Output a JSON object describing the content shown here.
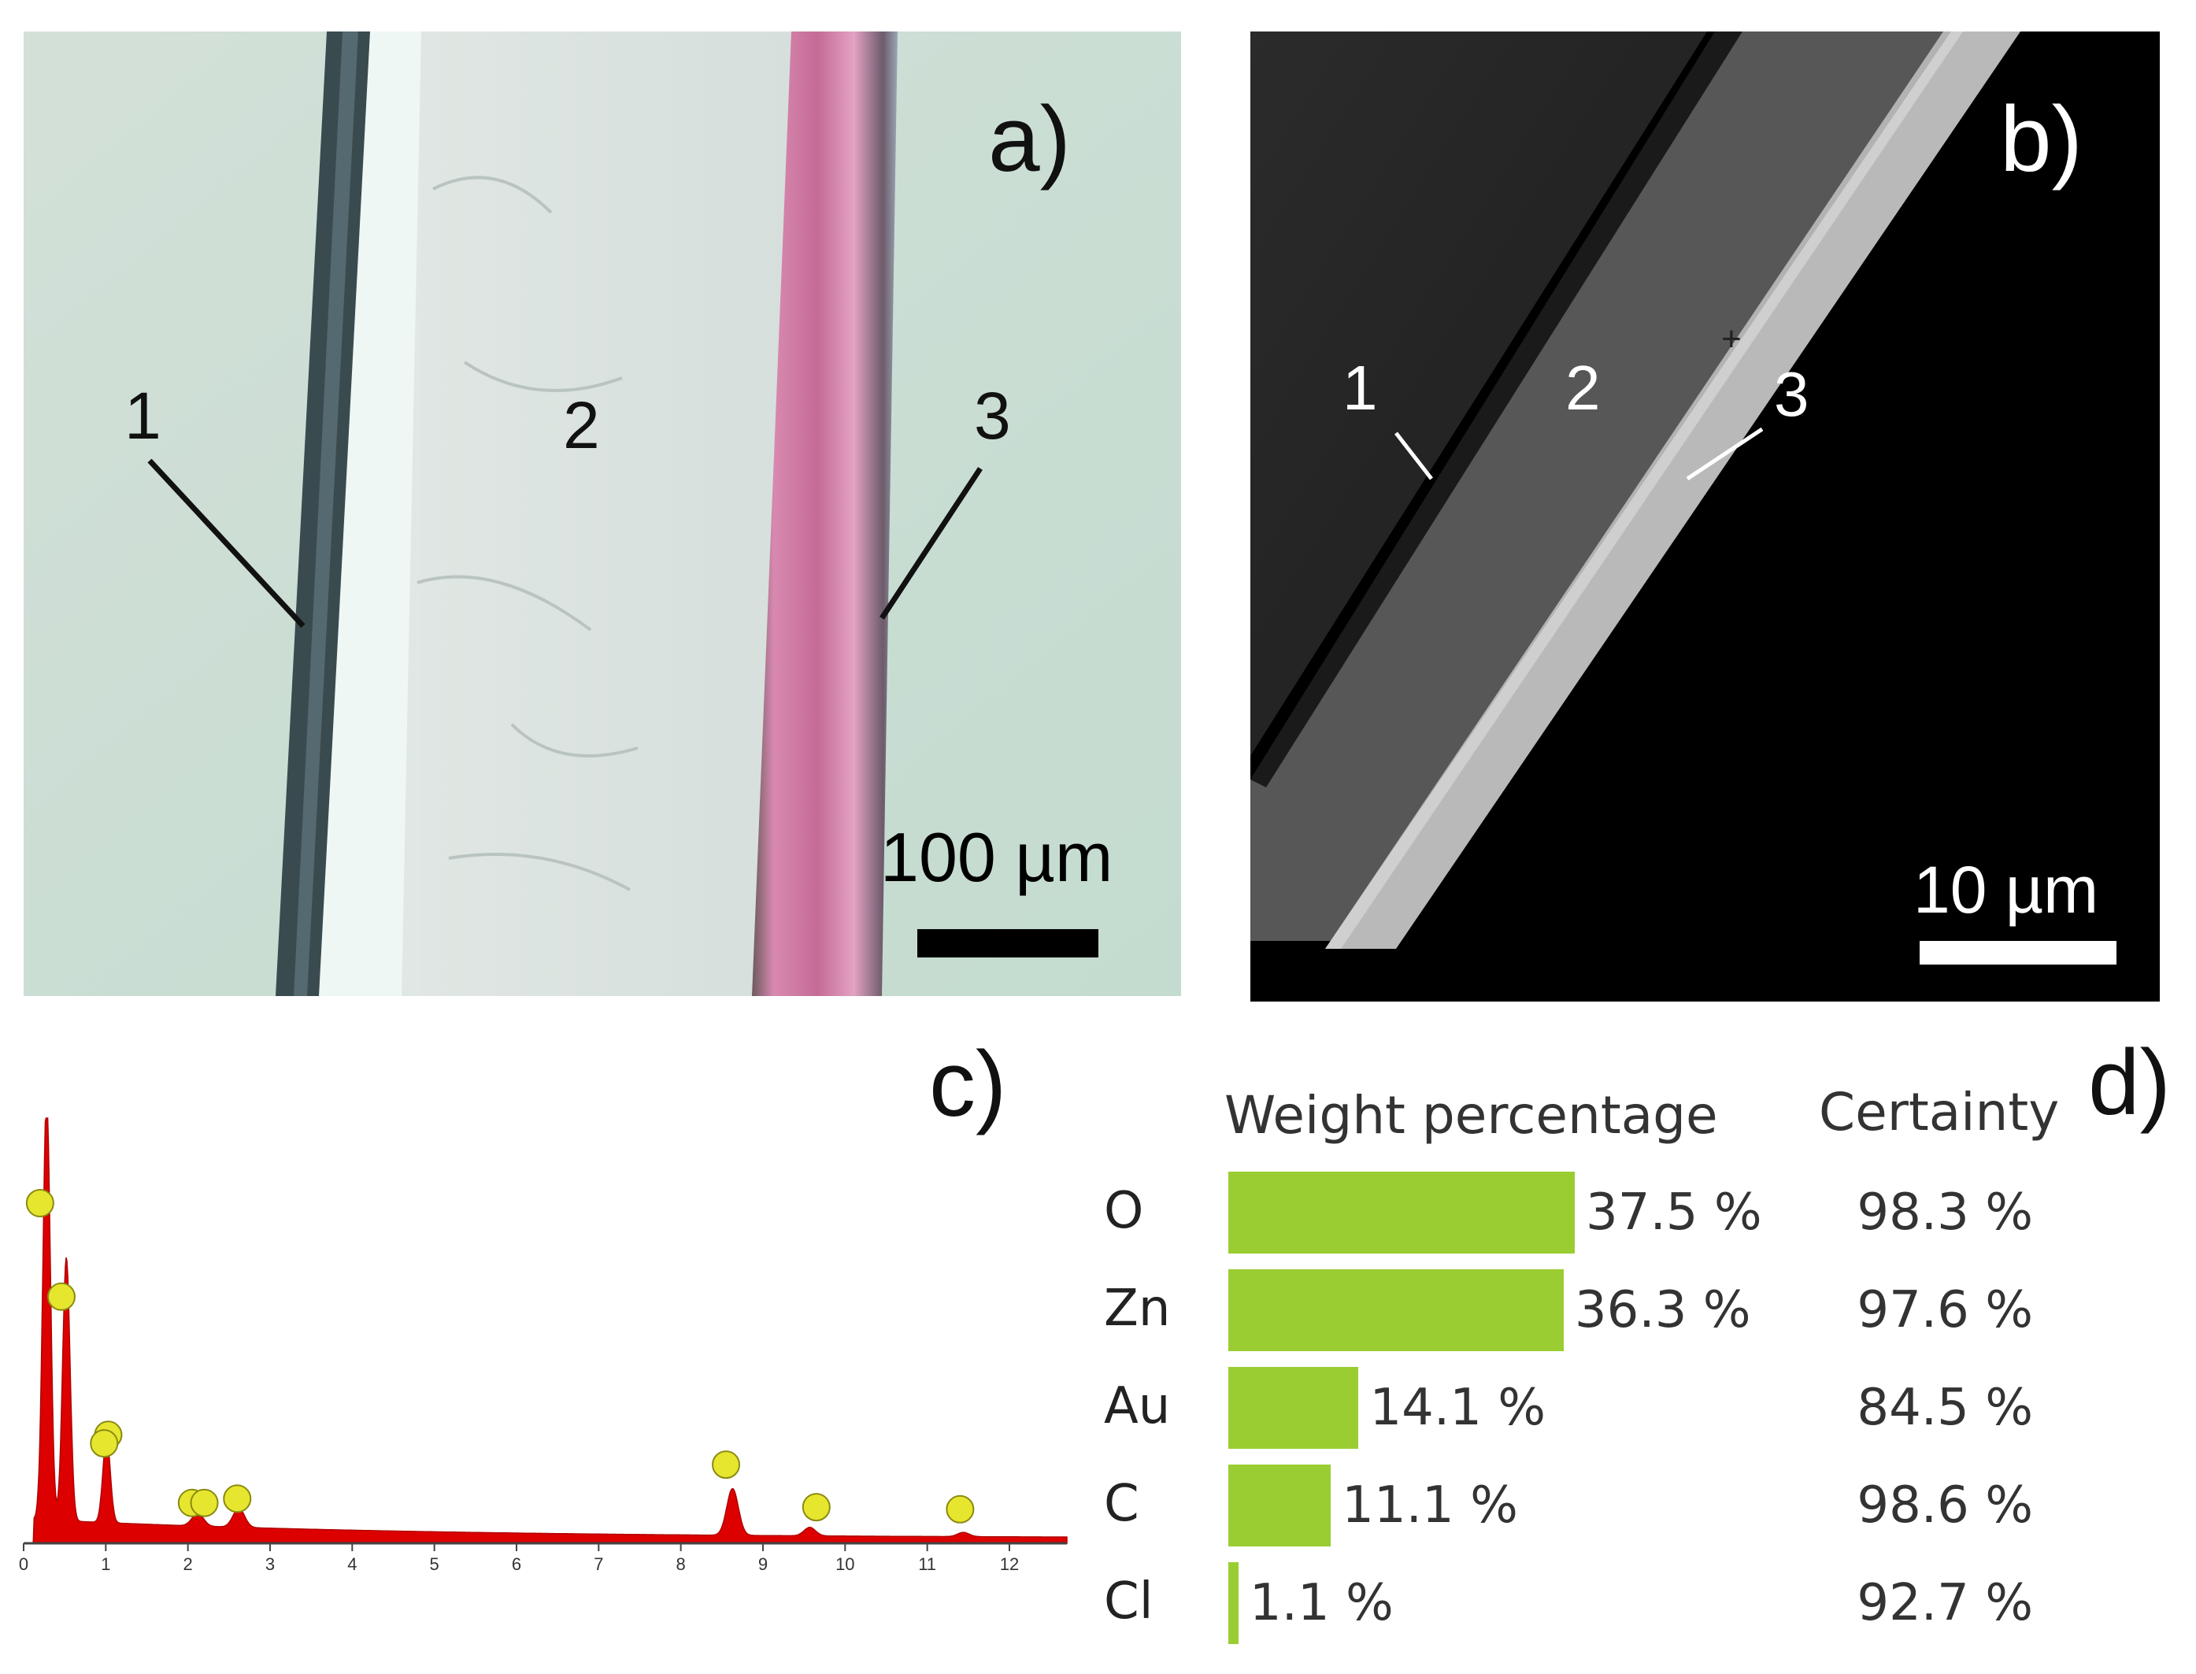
{
  "panels": {
    "a": {
      "letter": "a)",
      "layer_labels": [
        "1",
        "2",
        "3"
      ],
      "scale_bar": "100 µm"
    },
    "b": {
      "letter": "b)",
      "layer_labels": [
        "1",
        "2",
        "3"
      ],
      "scale_bar": "10 µm"
    },
    "c": {
      "letter": "c)"
    },
    "d": {
      "letter": "d)",
      "header_weight": "Weight percentage",
      "header_certainty": "Certainty"
    }
  },
  "chart_data": [
    {
      "type": "area",
      "panel": "c",
      "x_ticks": [
        "0",
        "1",
        "2",
        "3",
        "4",
        "5",
        "6",
        "7",
        "8",
        "9",
        "10",
        "11",
        "12"
      ],
      "xlim": [
        0,
        12.7
      ],
      "series_color": "#dd0000",
      "peaks": [
        {
          "x": 0.28,
          "height": 1.0
        },
        {
          "x": 0.52,
          "height": 0.62
        },
        {
          "x": 1.01,
          "height": 0.2
        },
        {
          "x": 2.12,
          "height": 0.03
        },
        {
          "x": 2.62,
          "height": 0.045
        },
        {
          "x": 8.63,
          "height": 0.11
        },
        {
          "x": 9.57,
          "height": 0.02
        },
        {
          "x": 11.44,
          "height": 0.01
        }
      ],
      "peak_markers": [
        {
          "x": 0.2,
          "level": 0.8
        },
        {
          "x": 0.46,
          "level": 0.58
        },
        {
          "x": 1.03,
          "level": 0.255
        },
        {
          "x": 0.98,
          "level": 0.235
        },
        {
          "x": 2.05,
          "level": 0.095
        },
        {
          "x": 2.2,
          "level": 0.095
        },
        {
          "x": 2.6,
          "level": 0.105
        },
        {
          "x": 8.55,
          "level": 0.185
        },
        {
          "x": 9.65,
          "level": 0.085
        },
        {
          "x": 11.4,
          "level": 0.08
        }
      ],
      "marker_color": "#e6e62e"
    },
    {
      "type": "bar",
      "panel": "d",
      "categories": [
        "O",
        "Zn",
        "Au",
        "C",
        "Cl"
      ],
      "values": [
        37.5,
        36.3,
        14.1,
        11.1,
        1.1
      ],
      "value_labels": [
        "37.5 %",
        "36.3 %",
        "14.1 %",
        "11.1 %",
        "1.1 %"
      ],
      "certainty": [
        "98.3 %",
        "97.6 %",
        "84.5 %",
        "98.6 %",
        "92.7 %"
      ],
      "xlim": [
        0,
        37.5
      ],
      "bar_color": "#9acd32"
    }
  ]
}
